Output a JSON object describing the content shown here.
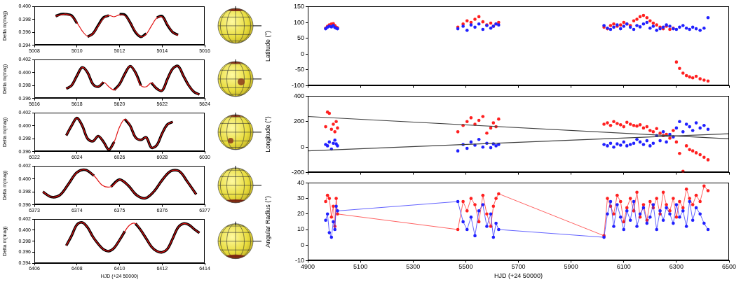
{
  "chart_data": [
    {
      "type": "line",
      "ylabel": "Delta m(mag)",
      "grid": false,
      "xlim": [
        5008,
        5016
      ],
      "xticks": [
        5008,
        5010,
        5012,
        5014,
        5016
      ],
      "ylim": [
        0.394,
        0.4
      ],
      "yticks": [
        0.394,
        0.396,
        0.398,
        {
          "value": 0.4,
          "label": "0.400"
        }
      ],
      "x": [
        5009,
        5009.25,
        5009.5,
        5009.75,
        5010,
        5010.25,
        5010.5,
        5010.75,
        5011,
        5011.25,
        5011.5,
        5011.75,
        5012,
        5012.25,
        5012.5,
        5012.75,
        5013,
        5013.25,
        5013.5,
        5013.75,
        5014,
        5014.25,
        5014.5,
        5014.75
      ],
      "series": [
        {
          "color": "#000000",
          "values": [
            0.3985,
            0.3988,
            0.3988,
            0.3986,
            0.3974,
            null,
            0.3953,
            0.3958,
            0.3971,
            0.3983,
            0.3986,
            null,
            0.3988,
            0.3987,
            0.3975,
            0.396,
            0.3953,
            0.3958,
            null,
            0.3983,
            0.3985,
            0.3971,
            0.396,
            0.3956
          ]
        },
        {
          "color": "#e01010",
          "values": [
            0.3985,
            0.3987,
            0.3988,
            0.3985,
            0.3975,
            0.3962,
            0.3954,
            0.3958,
            0.397,
            0.3982,
            0.3986,
            0.3984,
            0.3987,
            0.3986,
            0.3975,
            0.3961,
            0.3953,
            0.3957,
            0.397,
            0.3982,
            0.3984,
            0.3972,
            0.396,
            0.3955
          ]
        }
      ]
    },
    {
      "type": "line",
      "ylabel": "Delta m(mag)",
      "grid": false,
      "xlim": [
        5616,
        5624
      ],
      "xticks": [
        5616,
        5618,
        5620,
        5622,
        5624
      ],
      "ylim": [
        0.396,
        0.402
      ],
      "yticks": [
        0.396,
        0.398,
        {
          "value": 0.4,
          "label": "0.400"
        },
        0.402
      ],
      "x": [
        5617.5,
        5617.75,
        5618,
        5618.25,
        5618.5,
        5618.75,
        5619,
        5619.25,
        5619.5,
        5619.75,
        5620,
        5620.25,
        5620.5,
        5620.75,
        5621,
        5621.25,
        5621.5,
        5621.75,
        5622,
        5622.25,
        5622.5,
        5622.75,
        5623,
        5623.25,
        5623.5,
        5623.75
      ],
      "series": [
        {
          "color": "#000000",
          "values": [
            0.3975,
            0.398,
            0.3995,
            0.4008,
            0.4,
            0.3982,
            0.3978,
            0.3985,
            null,
            0.3973,
            0.3982,
            0.3998,
            0.401,
            0.4,
            0.398,
            null,
            0.3984,
            0.3975,
            0.3972,
            0.399,
            0.4006,
            0.401,
            0.3995,
            0.398,
            0.397,
            0.3966
          ]
        },
        {
          "color": "#e01010",
          "values": [
            0.3975,
            0.398,
            0.3995,
            0.4008,
            0.4,
            0.3982,
            0.3978,
            0.3985,
            0.3978,
            0.3973,
            0.3982,
            0.3998,
            0.401,
            0.4,
            0.398,
            0.3978,
            0.3984,
            0.3975,
            0.3972,
            0.399,
            0.4006,
            0.401,
            0.3995,
            0.398,
            0.397,
            0.3966
          ]
        }
      ]
    },
    {
      "type": "line",
      "ylabel": "Delta m(mag)",
      "grid": false,
      "xlim": [
        6022,
        6030
      ],
      "xticks": [
        6022,
        6024,
        6026,
        6028,
        6030
      ],
      "ylim": [
        0.396,
        0.402
      ],
      "yticks": [
        0.396,
        0.398,
        {
          "value": 0.4,
          "label": "0.400"
        },
        0.402
      ],
      "x": [
        6023.5,
        6023.75,
        6024,
        6024.25,
        6024.5,
        6024.75,
        6025,
        6025.25,
        6025.5,
        6025.75,
        6026,
        6026.25,
        6026.5,
        6026.75,
        6027,
        6027.25,
        6027.5,
        6027.75,
        6028,
        6028.25,
        6028.5
      ],
      "series": [
        {
          "color": "#000000",
          "values": [
            0.3985,
            0.4,
            0.4012,
            0.4,
            0.398,
            0.3976,
            0.3984,
            0.3975,
            0.3963,
            0.3975,
            null,
            0.401,
            0.4,
            0.3982,
            0.3978,
            0.3982,
            0.3966,
            0.397,
            0.3988,
            0.4002,
            0.4006
          ]
        },
        {
          "color": "#e01010",
          "values": [
            0.3985,
            0.4,
            0.4012,
            0.4,
            0.398,
            0.3976,
            0.3984,
            0.3975,
            0.3963,
            0.3975,
            0.3998,
            0.401,
            0.4,
            0.3982,
            0.3978,
            0.3982,
            0.3966,
            0.397,
            0.3988,
            0.4002,
            0.4006
          ]
        }
      ]
    },
    {
      "type": "line",
      "ylabel": "Delta m(mag)",
      "grid": false,
      "xlim": [
        6373,
        6377
      ],
      "xticks": [
        6373,
        6374,
        6375,
        6376,
        6377
      ],
      "ylim": [
        0.396,
        0.402
      ],
      "yticks": [
        0.396,
        0.398,
        {
          "value": 0.4,
          "label": "0.400"
        },
        0.402
      ],
      "x": [
        6373.2,
        6373.4,
        6373.6,
        6373.8,
        6374,
        6374.2,
        6374.4,
        6374.6,
        6374.8,
        6375,
        6375.2,
        6375.4,
        6375.6,
        6375.8,
        6376,
        6376.2,
        6376.4,
        6376.6,
        6376.8
      ],
      "series": [
        {
          "color": "#000000",
          "values": [
            0.398,
            0.3972,
            0.3975,
            0.3992,
            0.401,
            0.4014,
            0.4005,
            null,
            0.3988,
            0.3999,
            0.399,
            0.3975,
            0.397,
            0.398,
            0.3998,
            0.4012,
            0.4012,
            0.3995,
            0.3976
          ]
        },
        {
          "color": "#e01010",
          "values": [
            0.398,
            0.3972,
            0.3975,
            0.3992,
            0.401,
            0.4014,
            0.4005,
            0.399,
            0.3988,
            0.3999,
            0.399,
            0.3975,
            0.397,
            0.398,
            0.3998,
            0.4012,
            0.4012,
            0.3995,
            0.3976
          ]
        }
      ]
    },
    {
      "type": "line",
      "ylabel": "Delta m(mag)",
      "xlabel": "HJD (+24 50000)",
      "grid": false,
      "xlim": [
        6406,
        6414
      ],
      "xticks": [
        6406,
        6408,
        6410,
        6412,
        6414
      ],
      "ylim": [
        0.394,
        0.402
      ],
      "yticks": [
        0.394,
        0.396,
        0.398,
        {
          "value": 0.4,
          "label": "0.400"
        },
        0.402
      ],
      "x": [
        6407.5,
        6407.75,
        6408,
        6408.25,
        6408.5,
        6408.75,
        6409,
        6409.25,
        6409.5,
        6409.75,
        6410,
        6410.25,
        6410.5,
        6410.75,
        6411,
        6411.25,
        6411.5,
        6411.75,
        6412,
        6412.25,
        6412.5,
        6412.75,
        6413,
        6413.25,
        6413.5,
        6413.75
      ],
      "series": [
        {
          "color": "#000000",
          "values": [
            0.3972,
            0.399,
            0.401,
            0.4014,
            0.4005,
            0.3988,
            0.3975,
            0.3965,
            0.3962,
            0.3968,
            0.3982,
            0.3998,
            null,
            0.4012,
            0.4,
            0.3985,
            0.397,
            0.3962,
            0.396,
            0.3966,
            0.3985,
            0.4005,
            0.4012,
            0.401,
            0.4002,
            0.3995
          ]
        },
        {
          "color": "#e01010",
          "values": [
            0.3972,
            0.399,
            0.401,
            0.4014,
            0.4005,
            0.3988,
            0.3975,
            0.3965,
            0.3962,
            0.3968,
            0.3982,
            0.3998,
            0.401,
            0.4012,
            0.4,
            0.3985,
            0.397,
            0.3962,
            0.396,
            0.3966,
            0.3985,
            0.4005,
            0.4012,
            0.401,
            0.4002,
            0.3995
          ]
        }
      ]
    },
    {
      "type": "scatter",
      "ylabel": "Latitude (°)",
      "grid": false,
      "tick_labels": "y",
      "marker": "circle",
      "xlim": [
        4900,
        6500
      ],
      "xticks": [
        4900,
        5100,
        5300,
        5500,
        5700,
        5900,
        6100,
        6300,
        6500
      ],
      "ylim": [
        -100,
        150
      ],
      "yticks": [
        -100,
        -50,
        0,
        50,
        100,
        150
      ],
      "x": [
        4968,
        4975,
        4982,
        4990,
        4997,
        5003,
        5008,
        5013,
        5470,
        5490,
        5505,
        5520,
        5535,
        5550,
        5565,
        5580,
        5595,
        5605,
        5615,
        5625,
        6025,
        6038,
        6050,
        6062,
        6075,
        6088,
        6100,
        6112,
        6125,
        6138,
        6150,
        6162,
        6175,
        6188,
        6200,
        6212,
        6225,
        6238,
        6250,
        6262,
        6275,
        6288,
        6300,
        6312,
        6325,
        6338,
        6350,
        6362,
        6375,
        6390,
        6405,
        6420
      ],
      "series": [
        {
          "color": "#ff2020",
          "values": [
            82,
            88,
            92,
            95,
            96,
            90,
            85,
            83,
            85,
            95,
            105,
            100,
            110,
            118,
            102,
            92,
            98,
            88,
            95,
            100,
            85,
            80,
            90,
            95,
            88,
            92,
            100,
            95,
            90,
            105,
            110,
            118,
            122,
            115,
            105,
            98,
            92,
            85,
            80,
            88,
            78,
            82,
            -25,
            -45,
            -60,
            -68,
            -72,
            -75,
            -70,
            -78,
            -82,
            -85
          ]
        },
        {
          "color": "#2020ff",
          "values": [
            80,
            85,
            88,
            86,
            90,
            84,
            82,
            80,
            80,
            88,
            75,
            92,
            85,
            95,
            78,
            90,
            82,
            88,
            95,
            92,
            90,
            82,
            78,
            85,
            92,
            80,
            88,
            95,
            85,
            78,
            90,
            86,
            95,
            100,
            82,
            88,
            75,
            80,
            85,
            92,
            88,
            80,
            78,
            85,
            90,
            82,
            78,
            85,
            80,
            75,
            82,
            115
          ]
        }
      ]
    },
    {
      "type": "scatter",
      "ylabel": "Longitude (°)",
      "grid": false,
      "tick_labels": "y",
      "marker": "circle",
      "xlim": [
        4900,
        6500
      ],
      "xticks": [
        4900,
        5100,
        5300,
        5500,
        5700,
        5900,
        6100,
        6300,
        6500
      ],
      "ylim": [
        -200,
        400
      ],
      "yticks": [
        -200,
        0,
        200,
        400
      ],
      "x": [
        4968,
        4975,
        4982,
        4990,
        4997,
        5003,
        5008,
        5013,
        5470,
        5490,
        5505,
        5520,
        5535,
        5550,
        5565,
        5580,
        5595,
        5605,
        5615,
        5625,
        6025,
        6038,
        6050,
        6062,
        6075,
        6088,
        6100,
        6112,
        6125,
        6138,
        6150,
        6162,
        6175,
        6188,
        6200,
        6212,
        6225,
        6238,
        6250,
        6262,
        6275,
        6288,
        6300,
        6312,
        6325,
        6338,
        6350,
        6362,
        6375,
        6390,
        6405,
        6420
      ],
      "series": [
        {
          "color": "#ff2020",
          "values": [
            160,
            275,
            265,
            140,
            180,
            120,
            200,
            150,
            120,
            170,
            200,
            230,
            180,
            210,
            240,
            110,
            150,
            190,
            160,
            220,
            180,
            190,
            170,
            200,
            185,
            175,
            160,
            195,
            180,
            170,
            165,
            175,
            150,
            160,
            130,
            120,
            145,
            110,
            90,
            100,
            70,
            130,
            40,
            -50,
            -190,
            10,
            -20,
            -30,
            -45,
            -60,
            -80,
            -100
          ]
        },
        {
          "color": "#2020ff",
          "values": [
            20,
            10,
            40,
            -15,
            30,
            55,
            25,
            10,
            -30,
            20,
            -10,
            40,
            15,
            60,
            0,
            30,
            -5,
            25,
            10,
            20,
            20,
            10,
            30,
            0,
            25,
            15,
            40,
            10,
            20,
            30,
            60,
            40,
            20,
            50,
            10,
            30,
            90,
            50,
            120,
            40,
            100,
            80,
            150,
            200,
            120,
            180,
            160,
            130,
            190,
            150,
            170,
            140
          ]
        },
        {
          "color": "#404040",
          "type": "line",
          "marker": "none",
          "x": [
            4900,
            6500
          ],
          "values": [
            240,
            65
          ]
        },
        {
          "color": "#404040",
          "type": "line",
          "marker": "none",
          "x": [
            4900,
            6500
          ],
          "values": [
            -30,
            105
          ]
        }
      ]
    },
    {
      "type": "scatter",
      "ylabel": "Angular Radius (°)",
      "xlabel": "HJD (+24 50000)",
      "grid": false,
      "marker": "circle",
      "xlim": [
        4900,
        6500
      ],
      "xticks": [
        4900,
        5100,
        5300,
        5500,
        5700,
        5900,
        6100,
        6300,
        6500
      ],
      "ylim": [
        -10,
        40
      ],
      "yticks": [
        -10,
        0,
        10,
        20,
        30,
        40
      ],
      "x": [
        4968,
        4975,
        4982,
        4990,
        4997,
        5003,
        5008,
        5013,
        5470,
        5490,
        5505,
        5520,
        5535,
        5550,
        5565,
        5580,
        5595,
        5605,
        5615,
        5625,
        6025,
        6038,
        6050,
        6062,
        6075,
        6088,
        6100,
        6112,
        6125,
        6138,
        6150,
        6162,
        6175,
        6188,
        6200,
        6212,
        6225,
        6238,
        6250,
        6262,
        6275,
        6288,
        6300,
        6312,
        6325,
        6338,
        6350,
        6362,
        6375,
        6390,
        6405,
        6420
      ],
      "series": [
        {
          "color": "#ff2020",
          "line_style": "solid",
          "values": [
            28,
            32,
            30,
            18,
            25,
            12,
            30,
            20,
            10,
            28,
            22,
            30,
            26,
            15,
            32,
            20,
            12,
            25,
            30,
            33,
            6,
            30,
            25,
            20,
            32,
            28,
            15,
            24,
            30,
            22,
            34,
            18,
            26,
            16,
            28,
            24,
            30,
            20,
            34,
            26,
            22,
            30,
            18,
            28,
            24,
            36,
            30,
            26,
            32,
            28,
            38,
            35
          ]
        },
        {
          "color": "#2020ff",
          "line_style": "solid",
          "values": [
            16,
            20,
            8,
            5,
            15,
            10,
            25,
            22,
            28,
            15,
            10,
            18,
            6,
            22,
            26,
            12,
            20,
            5,
            14,
            10,
            5,
            20,
            28,
            12,
            26,
            18,
            10,
            22,
            16,
            28,
            12,
            20,
            24,
            14,
            18,
            26,
            10,
            22,
            16,
            24,
            20,
            14,
            26,
            18,
            22,
            12,
            28,
            16,
            24,
            20,
            14,
            10
          ]
        }
      ]
    }
  ]
}
